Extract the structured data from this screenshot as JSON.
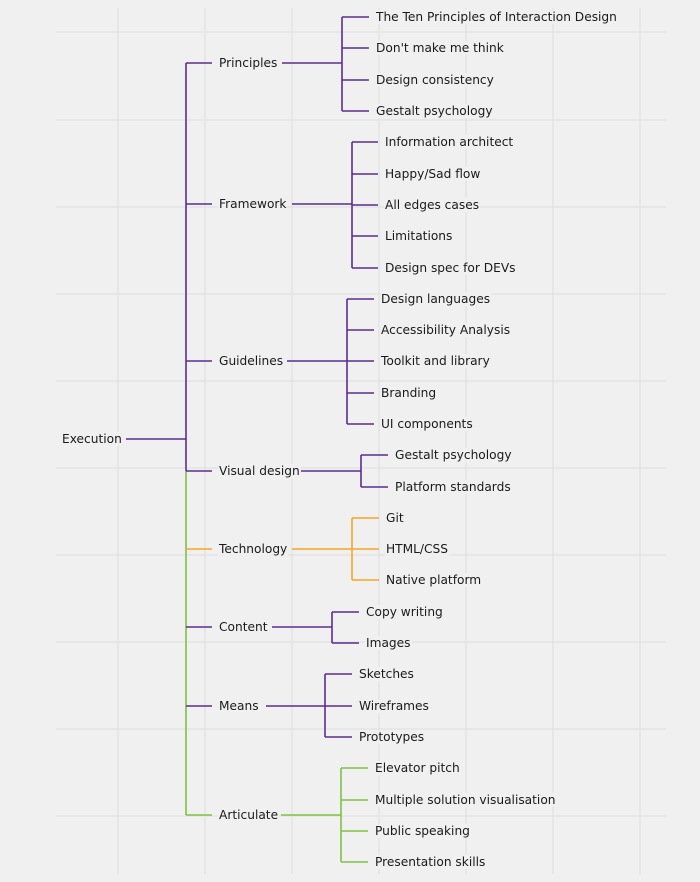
{
  "root": {
    "label": "Execution"
  },
  "branches": [
    {
      "label": "Principles",
      "color": "#5b2c91",
      "children": [
        "The Ten Principles of Interaction Design",
        "Don't make me think",
        "Design consistency",
        "Gestalt psychology"
      ]
    },
    {
      "label": "Framework",
      "color": "#5b2c91",
      "children": [
        "Information architect",
        "Happy/Sad flow",
        "All edges cases",
        "Limitations",
        "Design spec for DEVs"
      ]
    },
    {
      "label": "Guidelines",
      "color": "#5b2c91",
      "children": [
        "Design languages",
        "Accessibility Analysis",
        "Toolkit and library",
        "Branding",
        "UI components"
      ]
    },
    {
      "label": "Visual design",
      "color": "#5b2c91",
      "children": [
        "Gestalt psychology",
        "Platform standards"
      ]
    },
    {
      "label": "Technology",
      "color": "#f5a623",
      "children": [
        "Git",
        "HTML/CSS",
        "Native platform"
      ]
    },
    {
      "label": "Content",
      "color": "#5b2c91",
      "children": [
        "Copy writing",
        "Images"
      ]
    },
    {
      "label": "Means",
      "color": "#5b2c91",
      "children": [
        "Sketches",
        "Wireframes",
        "Prototypes"
      ]
    },
    {
      "label": "Articulate",
      "color": "#7dc243",
      "children": [
        "Elevator pitch",
        "Multiple solution visualisation",
        "Public speaking",
        "Presentation skills"
      ]
    }
  ],
  "colors": {
    "background": "#f0f0f0",
    "grid": "#dedede",
    "trunk_upper": "#5b2c91",
    "trunk_lower": "#7dc243"
  }
}
